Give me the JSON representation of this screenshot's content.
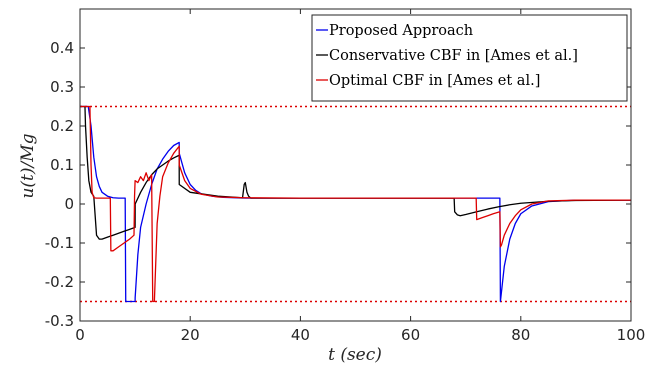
{
  "chart_data": {
    "type": "line",
    "title": "",
    "xlabel": "t (sec)",
    "ylabel": "u(t)/Mg",
    "xlim": [
      0,
      100
    ],
    "ylim": [
      -0.3,
      0.5
    ],
    "xticks": [
      "0",
      "20",
      "40",
      "60",
      "80",
      "100"
    ],
    "yticks": [
      "-0.3",
      "-0.2",
      "-0.1",
      "0",
      "0.1",
      "0.2",
      "0.3",
      "0.4"
    ],
    "grid": false,
    "legend_position": "top-right",
    "series": [
      {
        "name": "Proposed Approach",
        "color": "#0000ee",
        "x": [
          0,
          1.5,
          2,
          2.5,
          3,
          3.5,
          4,
          5,
          6,
          7,
          8,
          8.2,
          8.3,
          9.5,
          10,
          10.01,
          10.5,
          11,
          12,
          13,
          14,
          15,
          16,
          17,
          18,
          18.01,
          19,
          20,
          21,
          22,
          24,
          26,
          28,
          30,
          35,
          40,
          50,
          60,
          70,
          72,
          74,
          75.5,
          76.2,
          76.3,
          77,
          78,
          79,
          80,
          82,
          85,
          90,
          100
        ],
        "y": [
          0.25,
          0.25,
          0.2,
          0.12,
          0.07,
          0.045,
          0.03,
          0.02,
          0.016,
          0.015,
          0.015,
          0.015,
          -0.25,
          -0.25,
          -0.25,
          -0.24,
          -0.13,
          -0.06,
          0.0,
          0.05,
          0.09,
          0.115,
          0.135,
          0.15,
          0.158,
          0.13,
          0.08,
          0.05,
          0.035,
          0.026,
          0.02,
          0.017,
          0.016,
          0.015,
          0.015,
          0.015,
          0.015,
          0.015,
          0.015,
          0.015,
          0.015,
          0.015,
          0.015,
          -0.25,
          -0.16,
          -0.09,
          -0.05,
          -0.025,
          -0.005,
          0.006,
          0.01,
          0.01
        ]
      },
      {
        "name": "Conservative CBF in [Ames et al.]",
        "color": "#000000",
        "x": [
          0,
          0.9,
          1,
          1.3,
          1.6,
          2,
          2.5,
          3,
          3.5,
          4,
          5,
          6,
          7,
          8,
          9,
          10,
          10.01,
          11,
          12,
          13,
          14,
          15,
          16,
          17,
          18,
          18.01,
          20,
          25,
          29.5,
          29.8,
          30,
          30.3,
          30.6,
          31,
          35,
          40,
          50,
          60,
          67.9,
          68,
          68.5,
          69,
          70,
          72,
          74,
          76,
          78,
          80,
          85,
          90,
          100
        ],
        "y": [
          0.25,
          0.25,
          0.2,
          0.12,
          0.06,
          0.03,
          0.02,
          -0.08,
          -0.09,
          -0.09,
          -0.085,
          -0.08,
          -0.075,
          -0.07,
          -0.065,
          -0.06,
          0.0,
          0.03,
          0.055,
          0.075,
          0.09,
          0.1,
          0.11,
          0.118,
          0.125,
          0.05,
          0.03,
          0.02,
          0.016,
          0.05,
          0.055,
          0.03,
          0.02,
          0.015,
          0.015,
          0.015,
          0.015,
          0.015,
          0.015,
          -0.02,
          -0.028,
          -0.03,
          -0.027,
          -0.02,
          -0.013,
          -0.007,
          -0.002,
          0.002,
          0.007,
          0.009,
          0.01
        ]
      },
      {
        "name": "Optimal CBF in [Ames et al.]",
        "color": "#dd0000",
        "x": [
          0,
          1.8,
          2,
          2.2,
          2.5,
          3,
          4,
          5,
          5.5,
          5.6,
          6,
          7,
          8,
          9,
          9.8,
          9.9,
          10,
          10.5,
          11,
          11.5,
          12,
          12.5,
          13,
          13.2,
          13.5,
          14,
          14.5,
          15,
          16,
          17,
          18,
          18.01,
          19,
          20,
          22,
          25,
          30,
          40,
          50,
          60,
          70,
          71.9,
          72,
          73,
          74,
          75,
          76.2,
          76.3,
          76.5,
          77,
          78,
          79,
          80,
          82,
          85,
          90,
          100
        ],
        "y": [
          0.25,
          0.25,
          0.1,
          0.03,
          0.016,
          0.015,
          0.015,
          0.015,
          0.015,
          -0.12,
          -0.12,
          -0.11,
          -0.1,
          -0.09,
          -0.08,
          0.02,
          0.06,
          0.055,
          0.07,
          0.06,
          0.08,
          0.06,
          0.075,
          -0.25,
          -0.25,
          -0.05,
          0.02,
          0.07,
          0.105,
          0.13,
          0.148,
          0.1,
          0.06,
          0.04,
          0.025,
          0.018,
          0.016,
          0.015,
          0.015,
          0.015,
          0.015,
          0.015,
          -0.04,
          -0.035,
          -0.03,
          -0.025,
          -0.02,
          -0.11,
          -0.105,
          -0.08,
          -0.05,
          -0.03,
          -0.015,
          0.0,
          0.008,
          0.01,
          0.01
        ]
      }
    ],
    "bounds": {
      "color": "#dd0000",
      "values": [
        0.25,
        -0.25
      ]
    }
  }
}
